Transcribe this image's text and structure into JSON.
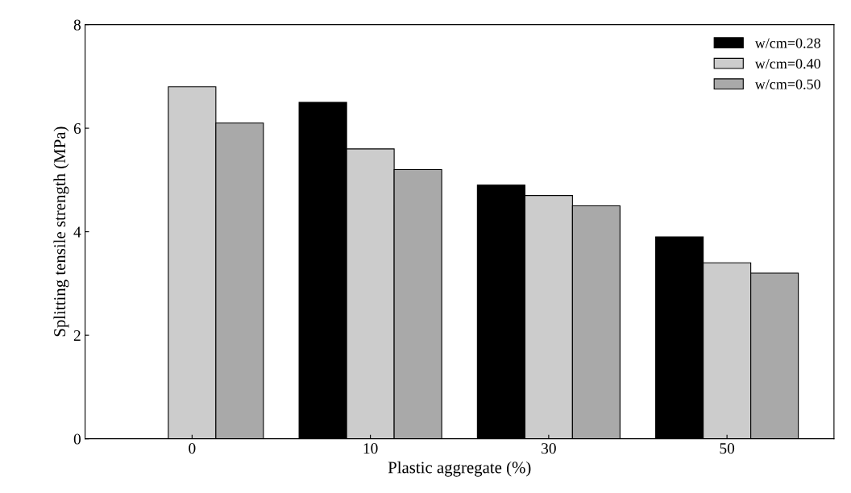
{
  "chart_data": {
    "type": "bar",
    "xlabel": "Plastic aggregate (%)",
    "ylabel": "Splitting tensile strength (MPa)",
    "categories": [
      "0",
      "10",
      "30",
      "50"
    ],
    "series": [
      {
        "name": "w/cm=0.28",
        "color": "#000000",
        "values": [
          null,
          6.5,
          4.9,
          3.9
        ]
      },
      {
        "name": "w/cm=0.40",
        "color": "#cccccc",
        "values": [
          6.8,
          5.6,
          4.7,
          3.4
        ]
      },
      {
        "name": "w/cm=0.50",
        "color": "#a9a9a9",
        "values": [
          6.1,
          5.2,
          4.5,
          3.2
        ]
      }
    ],
    "ylim": [
      0,
      8
    ],
    "yticks": [
      0,
      2,
      4,
      6,
      8
    ],
    "legend": "top right",
    "grid": false
  }
}
